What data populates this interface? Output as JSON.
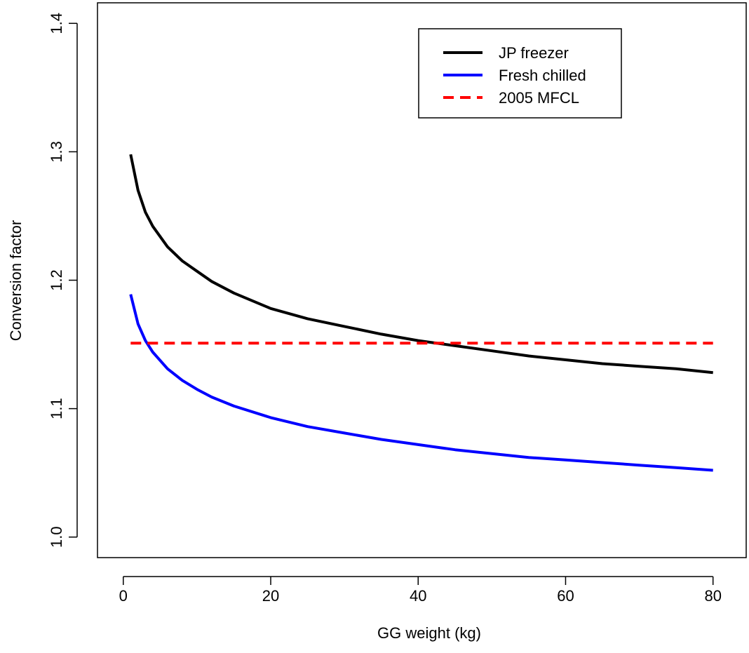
{
  "chart_data": {
    "type": "line",
    "title": "",
    "xlabel": "GG weight (kg)",
    "ylabel": "Conversion factor",
    "xlim": [
      -3.5,
      84.5
    ],
    "ylim": [
      0.984,
      1.416
    ],
    "x_ticks": [
      0,
      20,
      40,
      60,
      80
    ],
    "x_tick_labels": [
      "0",
      "20",
      "40",
      "60",
      "80"
    ],
    "y_ticks": [
      1.0,
      1.1,
      1.2,
      1.3,
      1.4
    ],
    "y_tick_labels": [
      "1.0",
      "1.1",
      "1.2",
      "1.3",
      "1.4"
    ],
    "grid": false,
    "legend_position": "top-right",
    "series": [
      {
        "name": "JP freezer",
        "color": "#000000",
        "style": "solid",
        "x": [
          1,
          2,
          3,
          4,
          6,
          8,
          10,
          12,
          15,
          20,
          25,
          30,
          35,
          40,
          45,
          50,
          55,
          60,
          65,
          70,
          75,
          80
        ],
        "y": [
          1.298,
          1.27,
          1.253,
          1.242,
          1.226,
          1.215,
          1.207,
          1.199,
          1.19,
          1.178,
          1.17,
          1.164,
          1.158,
          1.153,
          1.149,
          1.145,
          1.141,
          1.138,
          1.135,
          1.133,
          1.131,
          1.128
        ]
      },
      {
        "name": "Fresh chilled",
        "color": "#0000ff",
        "style": "solid",
        "x": [
          1,
          2,
          3,
          4,
          6,
          8,
          10,
          12,
          15,
          20,
          25,
          30,
          35,
          40,
          45,
          50,
          55,
          60,
          65,
          70,
          75,
          80
        ],
        "y": [
          1.189,
          1.166,
          1.153,
          1.144,
          1.131,
          1.122,
          1.115,
          1.109,
          1.102,
          1.093,
          1.086,
          1.081,
          1.076,
          1.072,
          1.068,
          1.065,
          1.062,
          1.06,
          1.058,
          1.056,
          1.054,
          1.052
        ]
      },
      {
        "name": "2005 MFCL",
        "color": "#ff0000",
        "style": "dashed",
        "x": [
          1,
          80
        ],
        "y": [
          1.151,
          1.151
        ]
      }
    ]
  }
}
